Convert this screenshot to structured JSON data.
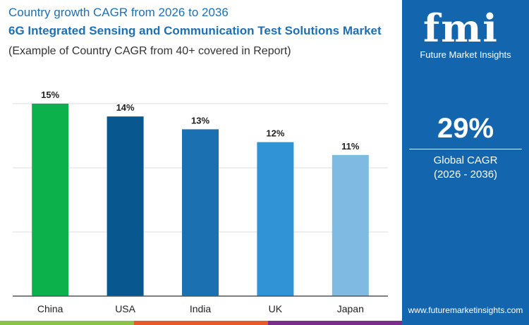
{
  "header": {
    "title": "Country growth CAGR from 2026 to 2036",
    "subtitle": "6G Integrated Sensing and Communication Test Solutions Market",
    "note": "(Example of Country CAGR from 40+ covered in Report)"
  },
  "panel": {
    "logo_text": "fmi",
    "logo_sub": "Future Market Insights",
    "global_value": "29%",
    "global_label": "Global CAGR",
    "global_period": "(2026 - 2036)",
    "url": "www.futuremarketinsights.com"
  },
  "chart_data": {
    "type": "bar",
    "categories": [
      "China",
      "USA",
      "India",
      "UK",
      "Japan"
    ],
    "values": [
      15,
      14,
      13,
      12,
      11
    ],
    "labels": [
      "15%",
      "14%",
      "13%",
      "12%",
      "11%"
    ],
    "colors": [
      "#0db14b",
      "#08578f",
      "#1a70b0",
      "#2f93d6",
      "#7fbae2"
    ],
    "ylim": [
      0,
      15
    ],
    "grid": true,
    "gridlines": [
      5,
      10,
      15
    ]
  },
  "colors": {
    "brand": "#1366ae",
    "stripes": [
      "#8bc34a",
      "#e8592a",
      "#7b2d8b"
    ]
  }
}
